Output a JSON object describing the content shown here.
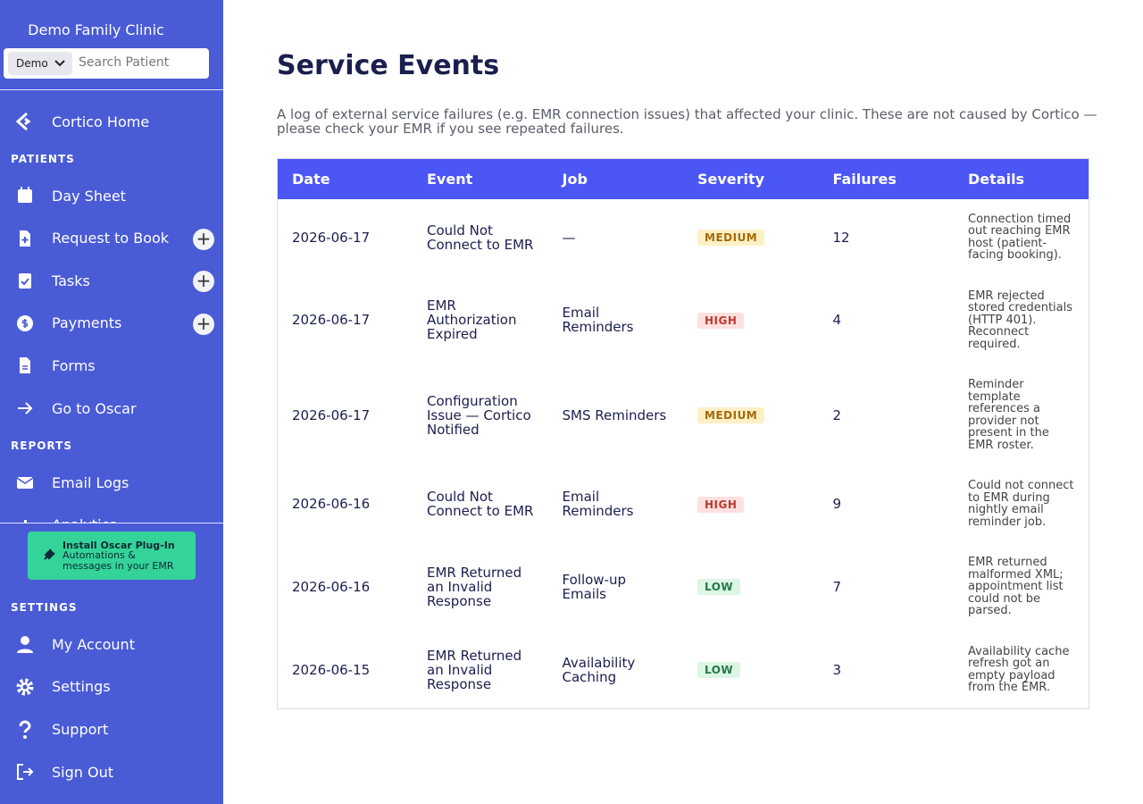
{
  "sidebar": {
    "clinic": "Demo Family Clinic",
    "selector": "Demo",
    "search": "Search Patient",
    "home": "Cortico Home",
    "patients": {
      "title": "PATIENTS",
      "items": [
        "Day Sheet",
        "Request to Book",
        "Tasks",
        "Payments",
        "Forms",
        "Go to Oscar"
      ]
    },
    "reports": {
      "title": "REPORTS",
      "items": [
        "Email Logs",
        "Analytics"
      ]
    },
    "plugin": {
      "title": "Install Oscar Plug-In",
      "subtitle": "Automations & messages in your EMR"
    },
    "settings": {
      "title": "SETTINGS",
      "items": [
        "My Account",
        "Settings",
        "Support",
        "Sign Out"
      ]
    }
  },
  "main": {
    "title": "Service Events",
    "description": "A log of external service failures (e.g. EMR connection issues) that affected your clinic. These are not caused by Cortico — please check your EMR if you see repeated failures.",
    "table": {
      "headers": [
        "Date",
        "Event",
        "Job",
        "Severity",
        "Failures",
        "Details"
      ],
      "rows": [
        [
          "2026-06-17",
          "Could Not Connect to EMR",
          "—",
          "MEDIUM",
          12,
          "Connection timed out reaching EMR host (patient-facing booking)."
        ],
        [
          "2026-06-17",
          "EMR Authorization Expired",
          "Email Reminders",
          "HIGH",
          4,
          "EMR rejected stored credentials (HTTP 401). Reconnect required."
        ],
        [
          "2026-06-17",
          "Configuration Issue — Cortico Notified",
          "SMS Reminders",
          "MEDIUM",
          2,
          "Reminder template references a provider not present in the EMR roster."
        ],
        [
          "2026-06-16",
          "Could Not Connect to EMR",
          "Email Reminders",
          "HIGH",
          9,
          "Could not connect to EMR during nightly email reminder job."
        ],
        [
          "2026-06-16",
          "EMR Returned an Invalid Response",
          "Follow-up Emails",
          "LOW",
          7,
          "EMR returned malformed XML; appointment list could not be parsed."
        ],
        [
          "2026-06-15",
          "EMR Returned an Invalid Response",
          "Availability Caching",
          "LOW",
          3,
          "Availability cache refresh got an empty payload from the EMR."
        ]
      ]
    }
  }
}
